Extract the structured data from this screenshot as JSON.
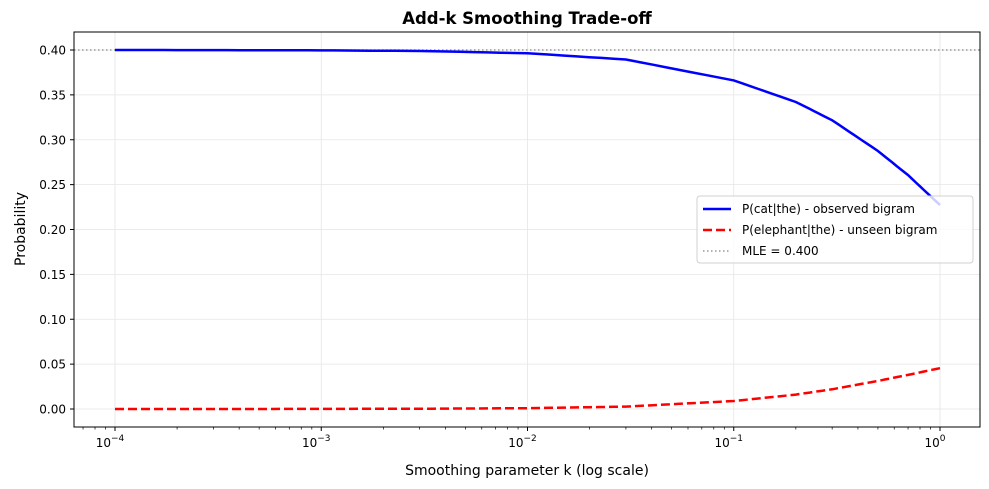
{
  "chart_data": {
    "type": "line",
    "title": "Add-k Smoothing Trade-off",
    "xlabel": "Smoothing parameter k (log scale)",
    "ylabel": "Probability",
    "xscale": "log",
    "xlim": [
      6.31e-05,
      1.585
    ],
    "ylim": [
      -0.02,
      0.42
    ],
    "grid": true,
    "legend_position": "center right",
    "x_ticks": [
      0.0001,
      0.001,
      0.01,
      0.1,
      1
    ],
    "x_tick_labels": [
      {
        "base": "10",
        "exp": "−4"
      },
      {
        "base": "10",
        "exp": "−3"
      },
      {
        "base": "10",
        "exp": "−2"
      },
      {
        "base": "10",
        "exp": "−1"
      },
      {
        "base": "10",
        "exp": "0"
      }
    ],
    "y_ticks": [
      0.0,
      0.05,
      0.1,
      0.15,
      0.2,
      0.25,
      0.3,
      0.35,
      0.4
    ],
    "y_tick_labels": [
      "0.00",
      "0.05",
      "0.10",
      "0.15",
      "0.20",
      "0.25",
      "0.30",
      "0.35",
      "0.40"
    ],
    "x": [
      0.0001,
      0.0003,
      0.001,
      0.003,
      0.01,
      0.03,
      0.1,
      0.2,
      0.3,
      0.5,
      0.7,
      1.0
    ],
    "series": [
      {
        "name": "P(cat|the) - observed bigram",
        "color": "#0000ff",
        "style": "solid",
        "values": [
          0.4,
          0.3999,
          0.3996,
          0.3989,
          0.3964,
          0.3894,
          0.3661,
          0.3421,
          0.3217,
          0.2875,
          0.2606,
          0.2273
        ]
      },
      {
        "name": "P(elephant|the) - unseen bigram",
        "color": "#ff0000",
        "style": "dashed",
        "values": [
          0.0,
          0.0,
          0.0001,
          0.0003,
          0.0009,
          0.0027,
          0.0089,
          0.0161,
          0.022,
          0.0313,
          0.038,
          0.0455
        ]
      },
      {
        "name": "MLE = 0.400",
        "color": "#808080",
        "style": "dotted",
        "values": "horizontal line at 0.400"
      }
    ]
  },
  "legend": {
    "items": [
      {
        "label": "P(cat|the) - observed bigram",
        "color": "#0000ff",
        "style": "solid"
      },
      {
        "label": "P(elephant|the) - unseen bigram",
        "color": "#ff0000",
        "style": "dashed"
      },
      {
        "label": "MLE = 0.400",
        "color": "#808080",
        "style": "dotted"
      }
    ]
  },
  "colors": {
    "observed": "#0000ff",
    "unseen": "#ff0000",
    "mle": "#808080",
    "grid": "#e5e5e5"
  }
}
